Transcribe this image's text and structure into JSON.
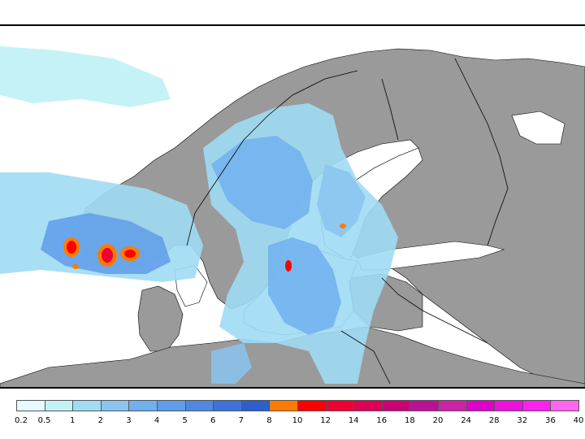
{
  "legend": {
    "levels": [
      "0.2",
      "0.5",
      "1",
      "2",
      "3",
      "4",
      "5",
      "6",
      "7",
      "8",
      "10",
      "12",
      "14",
      "16",
      "18",
      "20",
      "24",
      "28",
      "32",
      "36",
      "40"
    ],
    "colors": [
      "#e6fbff",
      "#c2f1f7",
      "#a0dcf3",
      "#8ac4f0",
      "#70b0ee",
      "#5f9ce9",
      "#4f88e3",
      "#3d73d8",
      "#2b5fcb",
      "#ff7b00",
      "#ff0000",
      "#ee0033",
      "#dd0055",
      "#cc0077",
      "#bb1199",
      "#cc22aa",
      "#dd00cc",
      "#ee11dd",
      "#ff22ee",
      "#ff66f2"
    ]
  },
  "palette": {
    "land": "#9a9a9a",
    "sea": "#ffffff",
    "coast": "#000000"
  }
}
